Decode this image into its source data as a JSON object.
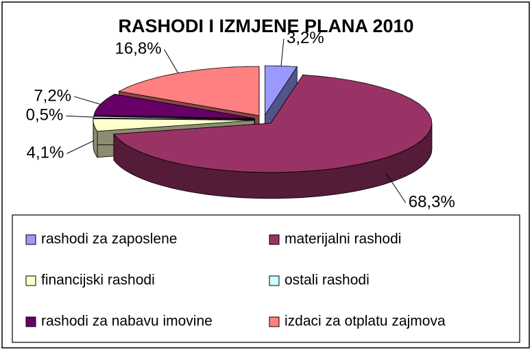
{
  "chart_data": {
    "type": "pie3d",
    "title": "RASHODI I IZMJENE PLANA 2010",
    "categories": [
      "rashodi za zaposlene",
      "materijalni rashodi",
      "financijski rashodi",
      "ostali rashodi",
      "rashodi za nabavu imovine",
      "izdaci za otplatu  zajmova"
    ],
    "values": [
      3.2,
      68.3,
      4.1,
      0.5,
      7.2,
      16.8
    ],
    "value_labels": [
      "3,2%",
      "68,3%",
      "4,1%",
      "0,5%",
      "7,2%",
      "16,8%"
    ],
    "colors": [
      "#9999FF",
      "#993366",
      "#FFFFCC",
      "#CCFFFF",
      "#660066",
      "#FF8080"
    ],
    "legend": "bottom"
  }
}
